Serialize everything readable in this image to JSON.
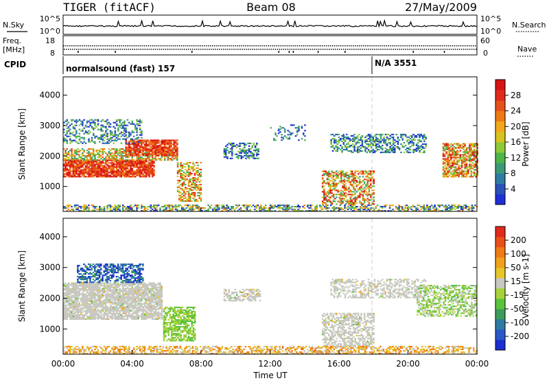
{
  "header": {
    "title": "TIGER (fitACF)",
    "beam": "Beam 08",
    "date": "27/May/2009"
  },
  "params": {
    "nsky_label": "N.Sky",
    "nsearch_label": "N.Search",
    "freq_label_1": "Freq.",
    "freq_label_2": "[MHz]",
    "nave_label": "Nave",
    "cpid_label": "CPID",
    "noise_ticks": [
      "10^5",
      "10^0"
    ],
    "noise_ticks_right": [
      "10^5",
      "10^0"
    ],
    "freq_ticks": [
      "18",
      "8"
    ],
    "nave_ticks": [
      "60",
      "0"
    ],
    "cpid_segments": [
      {
        "label": "normalsound (fast) 157",
        "start_hour": 0
      },
      {
        "label": "N/A 3551",
        "start_hour": 18.0
      }
    ]
  },
  "chart_data": [
    {
      "type": "heatmap",
      "name": "power",
      "ylabel": "Slant Range [km]",
      "ylim": [
        180,
        4600
      ],
      "yticks": [
        1000,
        2000,
        3000,
        4000
      ],
      "colorbar": {
        "label": "Power [dB]",
        "ticks": [
          4,
          8,
          12,
          16,
          20,
          24,
          28
        ],
        "colors": [
          "#1f2fd6",
          "#2a52b8",
          "#2f7ca3",
          "#3b9a73",
          "#4fb54a",
          "#8fc83a",
          "#d8c31f",
          "#f2a81c",
          "#ef7a14",
          "#e6501a",
          "#e02a1c",
          "#d61414"
        ]
      }
    },
    {
      "type": "heatmap",
      "name": "velocity",
      "ylabel": "Slant Range [km]",
      "ylim": [
        180,
        4600
      ],
      "yticks": [
        1000,
        2000,
        3000,
        4000
      ],
      "colorbar": {
        "label": "Velocity [m s-1]",
        "ticks": [
          200,
          100,
          50,
          15,
          -15,
          -50,
          -100,
          -200
        ],
        "colors": [
          "#1c2fd0",
          "#2b58c8",
          "#2f7aa2",
          "#3e9c5c",
          "#5cc23c",
          "#a9d23a",
          "#c8c8c0",
          "#e7c62a",
          "#f0a21c",
          "#ef7a16",
          "#e8501a",
          "#e02a1c"
        ]
      }
    }
  ],
  "xaxis": {
    "label": "Time UT",
    "range": [
      0,
      24
    ],
    "ticks": [
      "00:00",
      "04:00",
      "08:00",
      "12:00",
      "16:00",
      "20:00",
      "00:00"
    ]
  }
}
